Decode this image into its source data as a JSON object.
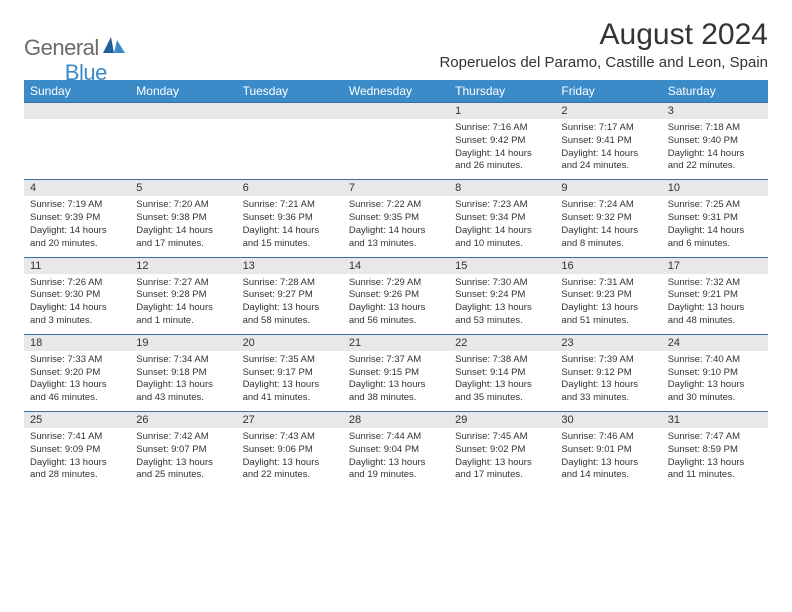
{
  "logo": {
    "general": "General",
    "blue": "Blue"
  },
  "title": "August 2024",
  "location": "Roperuelos del Paramo, Castille and Leon, Spain",
  "colors": {
    "header_bg": "#3b8bc9",
    "daynum_bg": "#e8e8e8",
    "border": "#3b6fa0",
    "text": "#333333",
    "logo_gray": "#6b6b6b",
    "logo_blue": "#3b8bc9"
  },
  "day_names": [
    "Sunday",
    "Monday",
    "Tuesday",
    "Wednesday",
    "Thursday",
    "Friday",
    "Saturday"
  ],
  "weeks": [
    [
      {
        "n": "",
        "sr": "",
        "ss": "",
        "dl": ""
      },
      {
        "n": "",
        "sr": "",
        "ss": "",
        "dl": ""
      },
      {
        "n": "",
        "sr": "",
        "ss": "",
        "dl": ""
      },
      {
        "n": "",
        "sr": "",
        "ss": "",
        "dl": ""
      },
      {
        "n": "1",
        "sr": "Sunrise: 7:16 AM",
        "ss": "Sunset: 9:42 PM",
        "dl": "Daylight: 14 hours and 26 minutes."
      },
      {
        "n": "2",
        "sr": "Sunrise: 7:17 AM",
        "ss": "Sunset: 9:41 PM",
        "dl": "Daylight: 14 hours and 24 minutes."
      },
      {
        "n": "3",
        "sr": "Sunrise: 7:18 AM",
        "ss": "Sunset: 9:40 PM",
        "dl": "Daylight: 14 hours and 22 minutes."
      }
    ],
    [
      {
        "n": "4",
        "sr": "Sunrise: 7:19 AM",
        "ss": "Sunset: 9:39 PM",
        "dl": "Daylight: 14 hours and 20 minutes."
      },
      {
        "n": "5",
        "sr": "Sunrise: 7:20 AM",
        "ss": "Sunset: 9:38 PM",
        "dl": "Daylight: 14 hours and 17 minutes."
      },
      {
        "n": "6",
        "sr": "Sunrise: 7:21 AM",
        "ss": "Sunset: 9:36 PM",
        "dl": "Daylight: 14 hours and 15 minutes."
      },
      {
        "n": "7",
        "sr": "Sunrise: 7:22 AM",
        "ss": "Sunset: 9:35 PM",
        "dl": "Daylight: 14 hours and 13 minutes."
      },
      {
        "n": "8",
        "sr": "Sunrise: 7:23 AM",
        "ss": "Sunset: 9:34 PM",
        "dl": "Daylight: 14 hours and 10 minutes."
      },
      {
        "n": "9",
        "sr": "Sunrise: 7:24 AM",
        "ss": "Sunset: 9:32 PM",
        "dl": "Daylight: 14 hours and 8 minutes."
      },
      {
        "n": "10",
        "sr": "Sunrise: 7:25 AM",
        "ss": "Sunset: 9:31 PM",
        "dl": "Daylight: 14 hours and 6 minutes."
      }
    ],
    [
      {
        "n": "11",
        "sr": "Sunrise: 7:26 AM",
        "ss": "Sunset: 9:30 PM",
        "dl": "Daylight: 14 hours and 3 minutes."
      },
      {
        "n": "12",
        "sr": "Sunrise: 7:27 AM",
        "ss": "Sunset: 9:28 PM",
        "dl": "Daylight: 14 hours and 1 minute."
      },
      {
        "n": "13",
        "sr": "Sunrise: 7:28 AM",
        "ss": "Sunset: 9:27 PM",
        "dl": "Daylight: 13 hours and 58 minutes."
      },
      {
        "n": "14",
        "sr": "Sunrise: 7:29 AM",
        "ss": "Sunset: 9:26 PM",
        "dl": "Daylight: 13 hours and 56 minutes."
      },
      {
        "n": "15",
        "sr": "Sunrise: 7:30 AM",
        "ss": "Sunset: 9:24 PM",
        "dl": "Daylight: 13 hours and 53 minutes."
      },
      {
        "n": "16",
        "sr": "Sunrise: 7:31 AM",
        "ss": "Sunset: 9:23 PM",
        "dl": "Daylight: 13 hours and 51 minutes."
      },
      {
        "n": "17",
        "sr": "Sunrise: 7:32 AM",
        "ss": "Sunset: 9:21 PM",
        "dl": "Daylight: 13 hours and 48 minutes."
      }
    ],
    [
      {
        "n": "18",
        "sr": "Sunrise: 7:33 AM",
        "ss": "Sunset: 9:20 PM",
        "dl": "Daylight: 13 hours and 46 minutes."
      },
      {
        "n": "19",
        "sr": "Sunrise: 7:34 AM",
        "ss": "Sunset: 9:18 PM",
        "dl": "Daylight: 13 hours and 43 minutes."
      },
      {
        "n": "20",
        "sr": "Sunrise: 7:35 AM",
        "ss": "Sunset: 9:17 PM",
        "dl": "Daylight: 13 hours and 41 minutes."
      },
      {
        "n": "21",
        "sr": "Sunrise: 7:37 AM",
        "ss": "Sunset: 9:15 PM",
        "dl": "Daylight: 13 hours and 38 minutes."
      },
      {
        "n": "22",
        "sr": "Sunrise: 7:38 AM",
        "ss": "Sunset: 9:14 PM",
        "dl": "Daylight: 13 hours and 35 minutes."
      },
      {
        "n": "23",
        "sr": "Sunrise: 7:39 AM",
        "ss": "Sunset: 9:12 PM",
        "dl": "Daylight: 13 hours and 33 minutes."
      },
      {
        "n": "24",
        "sr": "Sunrise: 7:40 AM",
        "ss": "Sunset: 9:10 PM",
        "dl": "Daylight: 13 hours and 30 minutes."
      }
    ],
    [
      {
        "n": "25",
        "sr": "Sunrise: 7:41 AM",
        "ss": "Sunset: 9:09 PM",
        "dl": "Daylight: 13 hours and 28 minutes."
      },
      {
        "n": "26",
        "sr": "Sunrise: 7:42 AM",
        "ss": "Sunset: 9:07 PM",
        "dl": "Daylight: 13 hours and 25 minutes."
      },
      {
        "n": "27",
        "sr": "Sunrise: 7:43 AM",
        "ss": "Sunset: 9:06 PM",
        "dl": "Daylight: 13 hours and 22 minutes."
      },
      {
        "n": "28",
        "sr": "Sunrise: 7:44 AM",
        "ss": "Sunset: 9:04 PM",
        "dl": "Daylight: 13 hours and 19 minutes."
      },
      {
        "n": "29",
        "sr": "Sunrise: 7:45 AM",
        "ss": "Sunset: 9:02 PM",
        "dl": "Daylight: 13 hours and 17 minutes."
      },
      {
        "n": "30",
        "sr": "Sunrise: 7:46 AM",
        "ss": "Sunset: 9:01 PM",
        "dl": "Daylight: 13 hours and 14 minutes."
      },
      {
        "n": "31",
        "sr": "Sunrise: 7:47 AM",
        "ss": "Sunset: 8:59 PM",
        "dl": "Daylight: 13 hours and 11 minutes."
      }
    ]
  ]
}
